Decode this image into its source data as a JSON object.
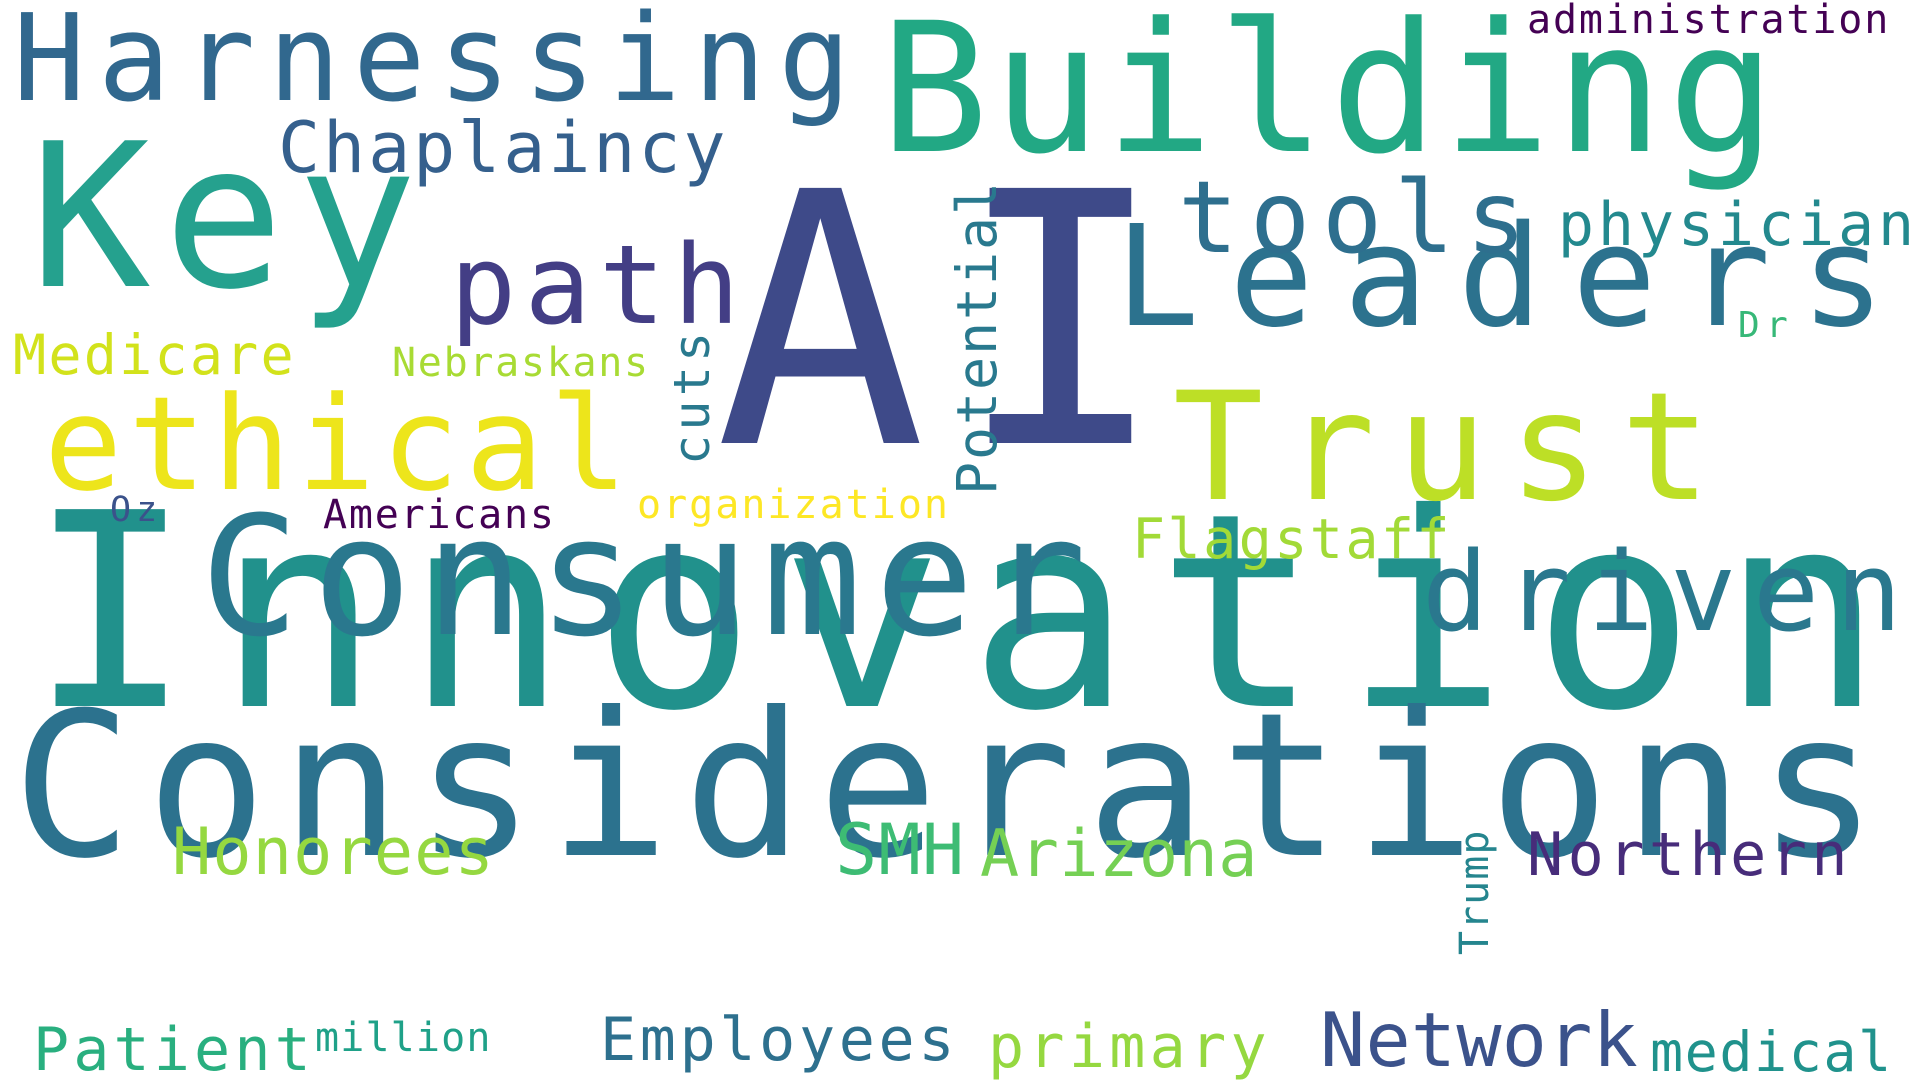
{
  "background_color": "#ffffff",
  "words": [
    {
      "text": "Innovation",
      "color": "#21918c"
    },
    {
      "text": "Considerations",
      "color": "#2c728e"
    },
    {
      "text": "AI",
      "color": "#3e4a89"
    },
    {
      "text": "Building",
      "color": "#22a884"
    },
    {
      "text": "Key",
      "color": "#25a18e"
    },
    {
      "text": "Consumer",
      "color": "#2a788e"
    },
    {
      "text": "Harnessing",
      "color": "#31688e"
    },
    {
      "text": "Leaders",
      "color": "#2c728e"
    },
    {
      "text": "Trust",
      "color": "#bddf26"
    },
    {
      "text": "ethical",
      "color": "#ede51b"
    },
    {
      "text": "driven",
      "color": "#2a788e"
    },
    {
      "text": "path",
      "color": "#433e85"
    },
    {
      "text": "tools",
      "color": "#2e6f8e"
    },
    {
      "text": "Chaplaincy",
      "color": "#35608d"
    },
    {
      "text": "physician",
      "color": "#23898e"
    },
    {
      "text": "Potential",
      "color": "#29798e"
    },
    {
      "text": "cuts",
      "color": "#29798e"
    },
    {
      "text": "Medicare",
      "color": "#d2e21b"
    },
    {
      "text": "Nebraskans",
      "color": "#a8db34"
    },
    {
      "text": "Dr",
      "color": "#37b878"
    },
    {
      "text": "administration",
      "color": "#440154"
    },
    {
      "text": "Oz",
      "color": "#3b528b"
    },
    {
      "text": "Americans",
      "color": "#440154"
    },
    {
      "text": "organization",
      "color": "#fde725"
    },
    {
      "text": "Flagstaff",
      "color": "#a2da37"
    },
    {
      "text": "Honorees",
      "color": "#95d840"
    },
    {
      "text": "SMH",
      "color": "#3dbc74"
    },
    {
      "text": "Arizona",
      "color": "#75d054"
    },
    {
      "text": "Trump",
      "color": "#25858e"
    },
    {
      "text": "Northern",
      "color": "#472c7a"
    },
    {
      "text": "Patient",
      "color": "#29af7f"
    },
    {
      "text": "million",
      "color": "#1fa188"
    },
    {
      "text": "Employees",
      "color": "#2d708e"
    },
    {
      "text": "primary",
      "color": "#95d840"
    },
    {
      "text": "Network",
      "color": "#3b528b"
    },
    {
      "text": "medical",
      "color": "#20928c"
    }
  ]
}
